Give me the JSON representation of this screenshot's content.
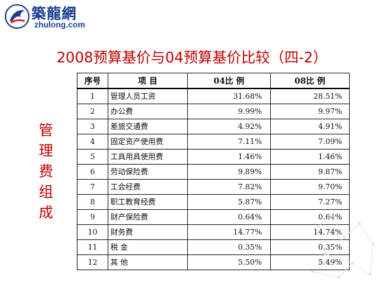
{
  "logo": {
    "name": "築龍網",
    "url": "zhulong.com"
  },
  "title": "2008预算基价与04预算基价比较（四-2）",
  "side_label": "管理费组成",
  "table": {
    "headers": [
      "序号",
      "项    目",
      "04比 例",
      "08比 例"
    ],
    "rows": [
      {
        "no": "1",
        "item": "管理人员工资",
        "v04": "31.68%",
        "v08": "28.51%"
      },
      {
        "no": "2",
        "item": "办公费",
        "v04": "9.99%",
        "v08": "9.97%"
      },
      {
        "no": "3",
        "item": "差旅交通费",
        "v04": "4.92%",
        "v08": "4.91%"
      },
      {
        "no": "4",
        "item": "固定资产使用费",
        "v04": "7.11%",
        "v08": "7.09%"
      },
      {
        "no": "5",
        "item": "工具用具使用费",
        "v04": "1.46%",
        "v08": "1.46%"
      },
      {
        "no": "6",
        "item": "劳动保险费",
        "v04": "9.89%",
        "v08": "9.87%"
      },
      {
        "no": "7",
        "item": "工会经费",
        "v04": "7.82%",
        "v08": "9.70%"
      },
      {
        "no": "8",
        "item": "职工教育经费",
        "v04": "5.87%",
        "v08": "7.27%"
      },
      {
        "no": "9",
        "item": "财产保险费",
        "v04": "0.64%",
        "v08": "0.64%"
      },
      {
        "no": "10",
        "item": "财务费",
        "v04": "14.77%",
        "v08": "14.74%"
      },
      {
        "no": "11",
        "item": "税    金",
        "v04": "0.35%",
        "v08": "0.35%"
      },
      {
        "no": "12",
        "item": "其    他",
        "v04": "5.50%",
        "v08": "5.49%"
      }
    ]
  }
}
